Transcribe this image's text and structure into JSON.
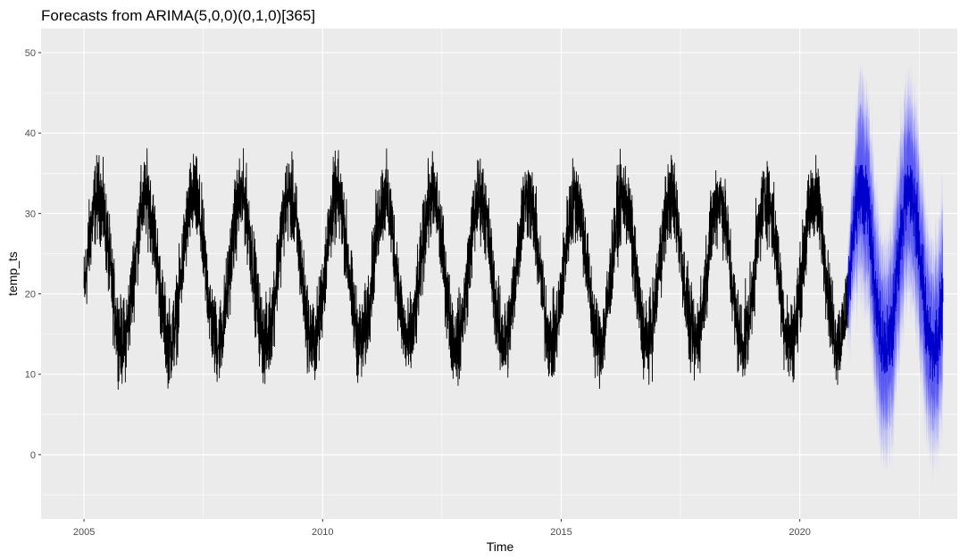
{
  "chart_data": {
    "type": "line",
    "title": "Forecasts from ARIMA(5,0,0)(0,1,0)[365]",
    "xlabel": "Time",
    "ylabel": "temp_ts",
    "xlim": [
      2004.1,
      2023.3
    ],
    "ylim": [
      -8,
      53
    ],
    "x_ticks": [
      2005,
      2010,
      2015,
      2020
    ],
    "y_ticks": [
      0,
      10,
      20,
      30,
      40,
      50
    ],
    "grid": true,
    "legend": "none",
    "series": [
      {
        "role": "observed",
        "color": "#000000",
        "start": 2005.0,
        "end": 2021.0,
        "samples_per_year": 365,
        "seasonal_mean": {
          "annual_mean": 23,
          "amplitude": 9,
          "peak_fraction_of_year": 0.3
        },
        "typical_daily_spread": 4.5,
        "observed_max": 38.2,
        "observed_min": 6.0
      },
      {
        "role": "forecast",
        "color": "#0000cc",
        "start": 2021.0,
        "end": 2023.0,
        "samples_per_year": 365,
        "seasonal_mean": {
          "annual_mean": 23,
          "amplitude": 10,
          "peak_fraction_of_year": 0.3
        },
        "point_forecast_max": 36,
        "point_forecast_min": 8
      },
      {
        "role": "prediction_interval_80",
        "color": "#5a5af2",
        "start": 2021.0,
        "end": 2023.0,
        "upper_max": 44,
        "lower_min": 3
      },
      {
        "role": "prediction_interval_95",
        "color": "#b8b8f6",
        "start": 2021.0,
        "end": 2023.0,
        "upper_max": 50,
        "lower_min": -4
      }
    ]
  }
}
